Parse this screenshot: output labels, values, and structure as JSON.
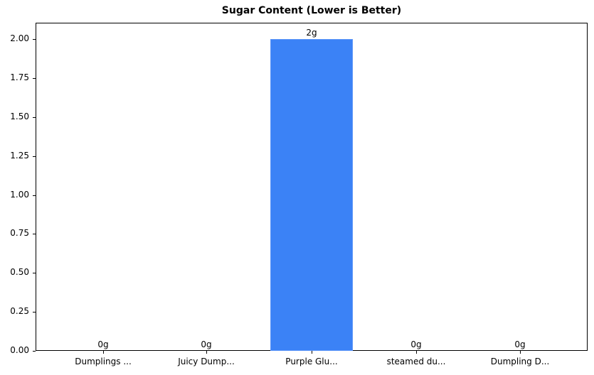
{
  "chart_data": {
    "type": "bar",
    "title": "Sugar Content (Lower is Better)",
    "xlabel": "",
    "ylabel": "",
    "categories": [
      "Dumplings ...",
      "Juicy Dump...",
      "Purple Glu...",
      "steamed du...",
      "Dumpling D..."
    ],
    "values": [
      0,
      0,
      2,
      0,
      0
    ],
    "value_labels": [
      "0g",
      "0g",
      "2g",
      "0g",
      "0g"
    ],
    "ylim": [
      0,
      2.1
    ],
    "yticks": [
      "0.00",
      "0.25",
      "0.50",
      "0.75",
      "1.00",
      "1.25",
      "1.50",
      "1.75",
      "2.00"
    ],
    "grid": false,
    "legend": null,
    "bar_color": "#3b82f6"
  }
}
